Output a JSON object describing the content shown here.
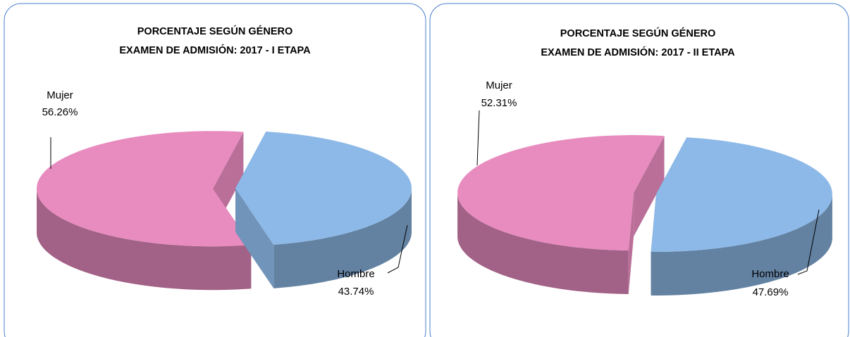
{
  "chart_data": [
    {
      "type": "pie",
      "title": "PORCENTAJE SEGÚN GÉNERO",
      "subtitle": "EXAMEN DE ADMISIÓN: 2017 - I ETAPA",
      "categories": [
        "Mujer",
        "Hombre"
      ],
      "values": [
        56.26,
        43.74
      ],
      "value_labels": [
        "56.26%",
        "43.74%"
      ],
      "colors": [
        "#e88bbf",
        "#8db9e8"
      ]
    },
    {
      "type": "pie",
      "title": "PORCENTAJE SEGÚN GÉNERO",
      "subtitle": "EXAMEN DE ADMISIÓN: 2017 - II ETAPA",
      "categories": [
        "Mujer",
        "Hombre"
      ],
      "values": [
        52.31,
        47.69
      ],
      "value_labels": [
        "52.31%",
        "47.69%"
      ],
      "colors": [
        "#e88bbf",
        "#8db9e8"
      ]
    }
  ]
}
